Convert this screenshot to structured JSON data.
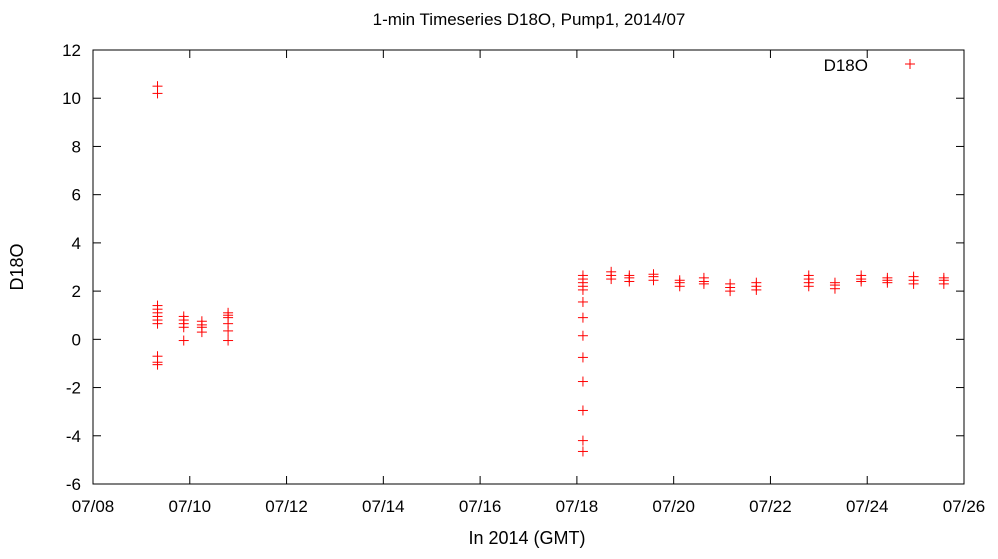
{
  "chart_data": {
    "type": "scatter",
    "title": "1-min Timeseries D18O, Pump1, 2014/07",
    "xlabel": "In 2014 (GMT)",
    "ylabel": "D18O",
    "xlim": [
      "2014-07-08",
      "2014-07-26"
    ],
    "ylim": [
      -6,
      12
    ],
    "x_ticks": [
      "07/08",
      "07/10",
      "07/12",
      "07/14",
      "07/16",
      "07/18",
      "07/20",
      "07/22",
      "07/24",
      "07/26"
    ],
    "y_ticks": [
      "-6",
      "-4",
      "-2",
      "0",
      "2",
      "4",
      "6",
      "8",
      "10",
      "12"
    ],
    "grid": false,
    "legend": {
      "position": "top-right",
      "entries": [
        "D18O"
      ]
    },
    "marker": "plus",
    "series": [
      {
        "name": "D18O",
        "color": "#ff0000",
        "points": [
          {
            "x": "2014-07-09 08:00",
            "y": 10.5
          },
          {
            "x": "2014-07-09 08:00",
            "y": 10.2
          },
          {
            "x": "2014-07-09 08:00",
            "y": 1.4
          },
          {
            "x": "2014-07-09 08:00",
            "y": 1.25
          },
          {
            "x": "2014-07-09 08:00",
            "y": 1.1
          },
          {
            "x": "2014-07-09 08:00",
            "y": 0.95
          },
          {
            "x": "2014-07-09 08:00",
            "y": 0.8
          },
          {
            "x": "2014-07-09 08:00",
            "y": 0.65
          },
          {
            "x": "2014-07-09 08:00",
            "y": -0.7
          },
          {
            "x": "2014-07-09 08:00",
            "y": -0.95
          },
          {
            "x": "2014-07-09 08:00",
            "y": -1.05
          },
          {
            "x": "2014-07-09 21:00",
            "y": 0.95
          },
          {
            "x": "2014-07-09 21:00",
            "y": 0.8
          },
          {
            "x": "2014-07-09 21:00",
            "y": 0.65
          },
          {
            "x": "2014-07-09 21:00",
            "y": 0.5
          },
          {
            "x": "2014-07-09 21:00",
            "y": -0.05
          },
          {
            "x": "2014-07-10 06:00",
            "y": 0.75
          },
          {
            "x": "2014-07-10 06:00",
            "y": 0.6
          },
          {
            "x": "2014-07-10 06:00",
            "y": 0.5
          },
          {
            "x": "2014-07-10 06:00",
            "y": 0.3
          },
          {
            "x": "2014-07-10 19:00",
            "y": 1.1
          },
          {
            "x": "2014-07-10 19:00",
            "y": 1.0
          },
          {
            "x": "2014-07-10 19:00",
            "y": 0.9
          },
          {
            "x": "2014-07-10 19:00",
            "y": 0.65
          },
          {
            "x": "2014-07-10 19:00",
            "y": 0.35
          },
          {
            "x": "2014-07-10 19:00",
            "y": -0.05
          },
          {
            "x": "2014-07-18 03:00",
            "y": 2.65
          },
          {
            "x": "2014-07-18 03:00",
            "y": 2.5
          },
          {
            "x": "2014-07-18 03:00",
            "y": 2.35
          },
          {
            "x": "2014-07-18 03:00",
            "y": 2.2
          },
          {
            "x": "2014-07-18 03:00",
            "y": 2.05
          },
          {
            "x": "2014-07-18 03:00",
            "y": 1.55
          },
          {
            "x": "2014-07-18 03:00",
            "y": 0.9
          },
          {
            "x": "2014-07-18 03:00",
            "y": 0.15
          },
          {
            "x": "2014-07-18 03:00",
            "y": -0.75
          },
          {
            "x": "2014-07-18 03:00",
            "y": -1.75
          },
          {
            "x": "2014-07-18 03:00",
            "y": -2.95
          },
          {
            "x": "2014-07-18 03:00",
            "y": -4.2
          },
          {
            "x": "2014-07-18 03:00",
            "y": -4.65
          },
          {
            "x": "2014-07-18 17:00",
            "y": 2.8
          },
          {
            "x": "2014-07-18 17:00",
            "y": 2.65
          },
          {
            "x": "2014-07-18 17:00",
            "y": 2.5
          },
          {
            "x": "2014-07-19 02:00",
            "y": 2.65
          },
          {
            "x": "2014-07-19 02:00",
            "y": 2.55
          },
          {
            "x": "2014-07-19 02:00",
            "y": 2.4
          },
          {
            "x": "2014-07-19 14:00",
            "y": 2.7
          },
          {
            "x": "2014-07-19 14:00",
            "y": 2.6
          },
          {
            "x": "2014-07-19 14:00",
            "y": 2.45
          },
          {
            "x": "2014-07-20 03:00",
            "y": 2.45
          },
          {
            "x": "2014-07-20 03:00",
            "y": 2.35
          },
          {
            "x": "2014-07-20 03:00",
            "y": 2.2
          },
          {
            "x": "2014-07-20 15:00",
            "y": 2.55
          },
          {
            "x": "2014-07-20 15:00",
            "y": 2.4
          },
          {
            "x": "2014-07-20 15:00",
            "y": 2.3
          },
          {
            "x": "2014-07-21 04:00",
            "y": 2.3
          },
          {
            "x": "2014-07-21 04:00",
            "y": 2.15
          },
          {
            "x": "2014-07-21 04:00",
            "y": 2.0
          },
          {
            "x": "2014-07-21 17:00",
            "y": 2.35
          },
          {
            "x": "2014-07-21 17:00",
            "y": 2.2
          },
          {
            "x": "2014-07-21 17:00",
            "y": 2.05
          },
          {
            "x": "2014-07-22 19:00",
            "y": 2.65
          },
          {
            "x": "2014-07-22 19:00",
            "y": 2.5
          },
          {
            "x": "2014-07-22 19:00",
            "y": 2.35
          },
          {
            "x": "2014-07-22 19:00",
            "y": 2.2
          },
          {
            "x": "2014-07-23 08:00",
            "y": 2.35
          },
          {
            "x": "2014-07-23 08:00",
            "y": 2.25
          },
          {
            "x": "2014-07-23 08:00",
            "y": 2.1
          },
          {
            "x": "2014-07-23 21:00",
            "y": 2.65
          },
          {
            "x": "2014-07-23 21:00",
            "y": 2.5
          },
          {
            "x": "2014-07-23 21:00",
            "y": 2.4
          },
          {
            "x": "2014-07-24 10:00",
            "y": 2.55
          },
          {
            "x": "2014-07-24 10:00",
            "y": 2.45
          },
          {
            "x": "2014-07-24 10:00",
            "y": 2.35
          },
          {
            "x": "2014-07-24 23:00",
            "y": 2.6
          },
          {
            "x": "2014-07-24 23:00",
            "y": 2.45
          },
          {
            "x": "2014-07-24 23:00",
            "y": 2.3
          },
          {
            "x": "2014-07-25 14:00",
            "y": 2.55
          },
          {
            "x": "2014-07-25 14:00",
            "y": 2.45
          },
          {
            "x": "2014-07-25 14:00",
            "y": 2.3
          }
        ]
      }
    ]
  }
}
